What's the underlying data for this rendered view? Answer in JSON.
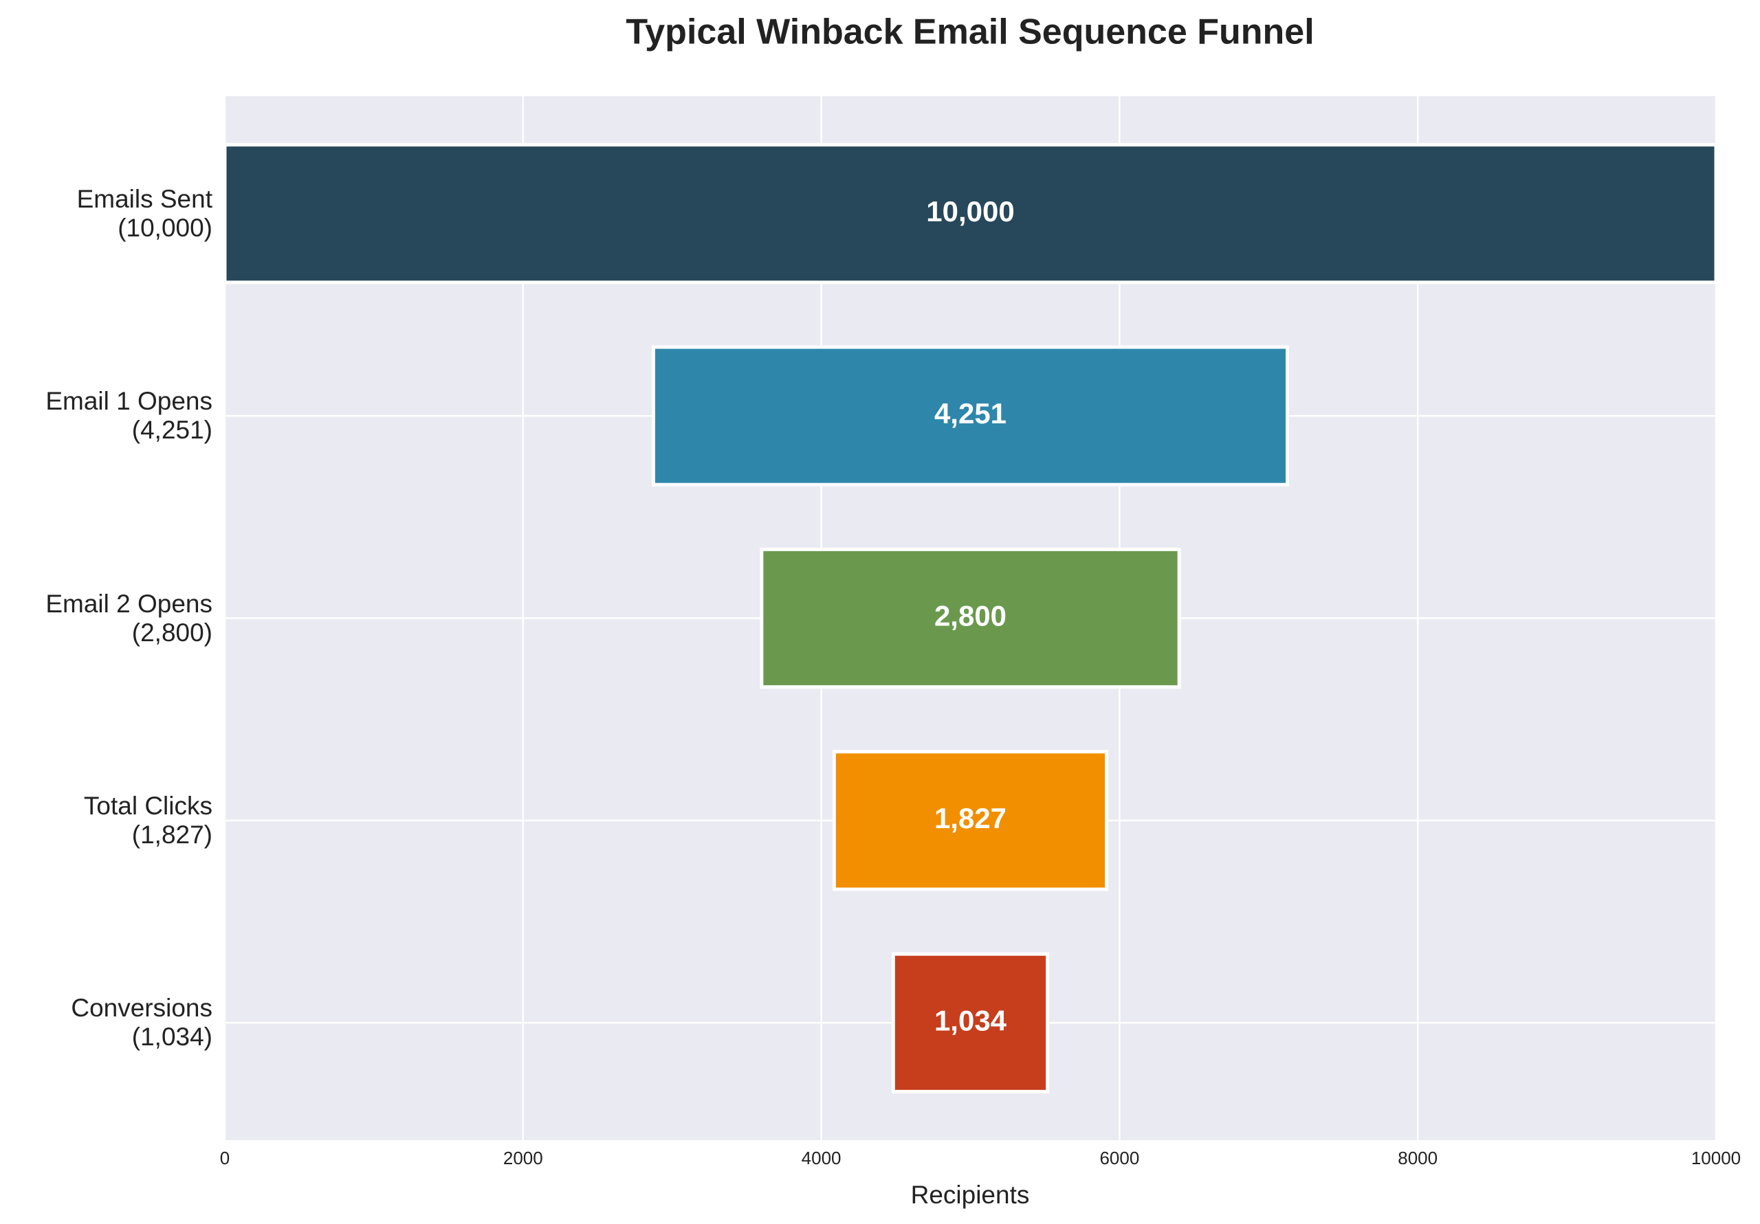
{
  "chart_data": {
    "type": "funnel",
    "title": "Typical Winback Email Sequence Funnel",
    "x_label": "Recipients",
    "categories": [
      "Emails Sent\n(10,000)",
      "Email 1 Opens\n(4,251)",
      "Email 2 Opens\n(2,800)",
      "Total Clicks\n(1,827)",
      "Conversions\n(1,034)"
    ],
    "values": [
      10000,
      4251,
      2800,
      1827,
      1034
    ],
    "value_labels": [
      "10,000",
      "4,251",
      "2,800",
      "1,827",
      "1,034"
    ],
    "colors": [
      "#27485a",
      "#2e87ab",
      "#6a994e",
      "#f18f01",
      "#c73e1d"
    ],
    "xlim": [
      0,
      10000
    ],
    "xticks": [
      0,
      2000,
      4000,
      6000,
      8000,
      10000
    ],
    "grid": true
  }
}
